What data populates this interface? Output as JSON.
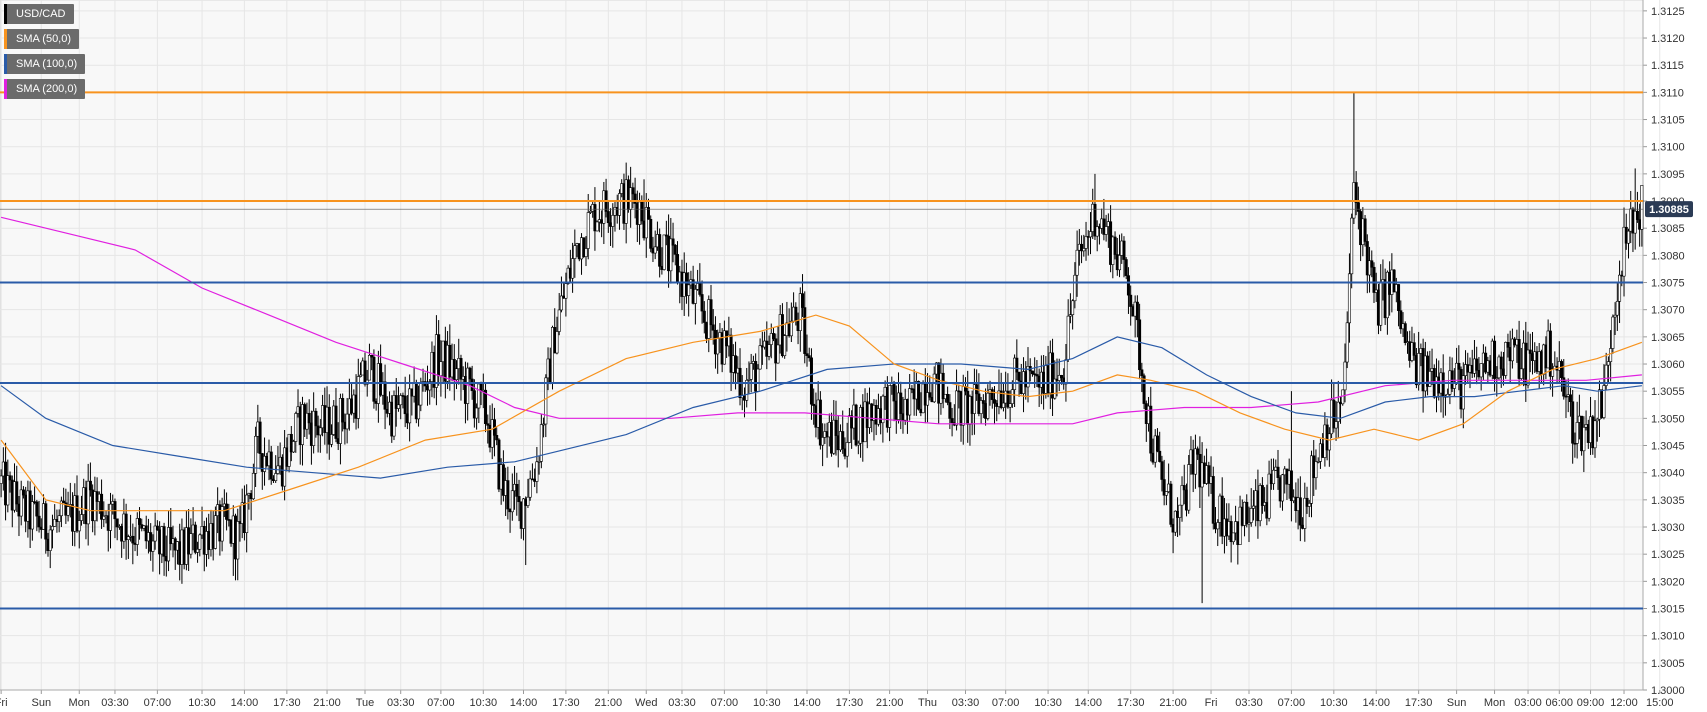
{
  "chart_data": {
    "type": "candlestick",
    "symbol": "USD/CAD",
    "legend": [
      {
        "label": "USD/CAD",
        "color": "#000000"
      },
      {
        "label": "SMA (50,0)",
        "color": "#f7931e"
      },
      {
        "label": "SMA (100,0)",
        "color": "#2a5ba8"
      },
      {
        "label": "SMA (200,0)",
        "color": "#e020e0"
      }
    ],
    "ylim": [
      1.3,
      1.3127
    ],
    "y_ticks": [
      "1.3000",
      "1.3005",
      "1.3010",
      "1.3015",
      "1.3020",
      "1.3025",
      "1.3030",
      "1.3035",
      "1.3040",
      "1.3045",
      "1.3050",
      "1.3055",
      "1.3060",
      "1.3065",
      "1.3070",
      "1.3075",
      "1.3080",
      "1.3085",
      "1.3090",
      "1.3095",
      "1.3100",
      "1.3105",
      "1.3110",
      "1.3115",
      "1.3120",
      "1.3125"
    ],
    "x_ticks": [
      "Fri",
      "Sun",
      "Mon",
      "03:30",
      "07:00",
      "10:30",
      "14:00",
      "17:30",
      "21:00",
      "Tue",
      "03:30",
      "07:00",
      "10:30",
      "14:00",
      "17:30",
      "21:00",
      "Wed",
      "03:30",
      "07:00",
      "10:30",
      "14:00",
      "17:30",
      "21:00",
      "Thu",
      "03:30",
      "07:00",
      "10:30",
      "14:00",
      "17:30",
      "21:00",
      "Fri",
      "03:30",
      "07:00",
      "10:30",
      "14:00",
      "17:30",
      "Sun",
      "Mon",
      "03:00",
      "06:00",
      "09:00",
      "12:00",
      "15:00"
    ],
    "x_tick_index": [
      0,
      18,
      35,
      51,
      70,
      90,
      109,
      128,
      146,
      163,
      179,
      197,
      216,
      234,
      253,
      272,
      289,
      305,
      324,
      343,
      361,
      380,
      398,
      415,
      432,
      450,
      469,
      487,
      506,
      525,
      542,
      559,
      578,
      597,
      616,
      635,
      652,
      669,
      684,
      698,
      712,
      727,
      743
    ],
    "current_price": "1.30885",
    "current_value": 1.30885,
    "horizontal_levels": [
      {
        "value": 1.311,
        "color": "#f7931e"
      },
      {
        "value": 1.309,
        "color": "#f7931e"
      },
      {
        "value": 1.3075,
        "color": "#2a5ba8"
      },
      {
        "value": 1.30565,
        "color": "#2a5ba8"
      },
      {
        "value": 1.3015,
        "color": "#2a5ba8"
      }
    ],
    "anchors": [
      [
        0,
        1.3038
      ],
      [
        10,
        1.3033
      ],
      [
        20,
        1.303
      ],
      [
        30,
        1.3031
      ],
      [
        40,
        1.3036
      ],
      [
        50,
        1.3032
      ],
      [
        60,
        1.3029
      ],
      [
        70,
        1.3026
      ],
      [
        80,
        1.3025
      ],
      [
        90,
        1.3029
      ],
      [
        100,
        1.303
      ],
      [
        107,
        1.3028
      ],
      [
        115,
        1.3045
      ],
      [
        125,
        1.3041
      ],
      [
        135,
        1.305
      ],
      [
        145,
        1.3048
      ],
      [
        155,
        1.3051
      ],
      [
        165,
        1.3059
      ],
      [
        175,
        1.3051
      ],
      [
        185,
        1.3052
      ],
      [
        195,
        1.3061
      ],
      [
        200,
        1.306
      ],
      [
        210,
        1.3055
      ],
      [
        218,
        1.305
      ],
      [
        225,
        1.3037
      ],
      [
        232,
        1.3033
      ],
      [
        240,
        1.3042
      ],
      [
        248,
        1.3066
      ],
      [
        258,
        1.3082
      ],
      [
        266,
        1.3088
      ],
      [
        276,
        1.309
      ],
      [
        285,
        1.309
      ],
      [
        293,
        1.3083
      ],
      [
        303,
        1.3077
      ],
      [
        313,
        1.307
      ],
      [
        323,
        1.3064
      ],
      [
        333,
        1.3056
      ],
      [
        343,
        1.3061
      ],
      [
        350,
        1.3066
      ],
      [
        358,
        1.3069
      ],
      [
        363,
        1.3056
      ],
      [
        368,
        1.3047
      ],
      [
        376,
        1.3046
      ],
      [
        386,
        1.305
      ],
      [
        396,
        1.3053
      ],
      [
        406,
        1.3051
      ],
      [
        416,
        1.3058
      ],
      [
        426,
        1.3052
      ],
      [
        436,
        1.3052
      ],
      [
        446,
        1.3055
      ],
      [
        456,
        1.3057
      ],
      [
        466,
        1.3056
      ],
      [
        476,
        1.306
      ],
      [
        482,
        1.3078
      ],
      [
        490,
        1.3088
      ],
      [
        498,
        1.3082
      ],
      [
        505,
        1.3076
      ],
      [
        510,
        1.3062
      ],
      [
        515,
        1.3047
      ],
      [
        520,
        1.3038
      ],
      [
        527,
        1.303
      ],
      [
        535,
        1.3043
      ],
      [
        543,
        1.3034
      ],
      [
        553,
        1.303
      ],
      [
        563,
        1.3033
      ],
      [
        573,
        1.3038
      ],
      [
        583,
        1.3034
      ],
      [
        593,
        1.3048
      ],
      [
        601,
        1.3052
      ],
      [
        606,
        1.3092
      ],
      [
        611,
        1.3082
      ],
      [
        616,
        1.307
      ],
      [
        623,
        1.3075
      ],
      [
        630,
        1.3062
      ],
      [
        637,
        1.3058
      ],
      [
        645,
        1.3058
      ],
      [
        655,
        1.3056
      ],
      [
        665,
        1.306
      ],
      [
        675,
        1.3062
      ],
      [
        685,
        1.306
      ],
      [
        695,
        1.3062
      ],
      [
        700,
        1.3055
      ],
      [
        705,
        1.3048
      ],
      [
        712,
        1.3048
      ],
      [
        718,
        1.3054
      ],
      [
        722,
        1.307
      ],
      [
        726,
        1.308
      ],
      [
        734,
        1.3089
      ]
    ],
    "wick_peaks": [
      [
        288,
        1.3094
      ],
      [
        490,
        1.3095
      ],
      [
        606,
        1.311
      ],
      [
        732,
        1.3096
      ],
      [
        538,
        1.3016
      ],
      [
        235,
        1.3023
      ],
      [
        104,
        1.3021
      ],
      [
        578,
        1.3055
      ]
    ],
    "sma50": [
      [
        0,
        1.3046
      ],
      [
        20,
        1.3035
      ],
      [
        40,
        1.3033
      ],
      [
        70,
        1.3033
      ],
      [
        100,
        1.3033
      ],
      [
        130,
        1.3037
      ],
      [
        160,
        1.3041
      ],
      [
        190,
        1.3046
      ],
      [
        220,
        1.3048
      ],
      [
        250,
        1.3055
      ],
      [
        280,
        1.3061
      ],
      [
        310,
        1.3064
      ],
      [
        340,
        1.3066
      ],
      [
        365,
        1.3069
      ],
      [
        380,
        1.3067
      ],
      [
        400,
        1.306
      ],
      [
        420,
        1.3057
      ],
      [
        440,
        1.3055
      ],
      [
        460,
        1.3054
      ],
      [
        480,
        1.3055
      ],
      [
        500,
        1.3058
      ],
      [
        515,
        1.3057
      ],
      [
        535,
        1.3055
      ],
      [
        555,
        1.3051
      ],
      [
        575,
        1.3048
      ],
      [
        595,
        1.3046
      ],
      [
        615,
        1.3048
      ],
      [
        635,
        1.3046
      ],
      [
        655,
        1.3049
      ],
      [
        675,
        1.3055
      ],
      [
        695,
        1.3059
      ],
      [
        715,
        1.3061
      ],
      [
        735,
        1.3064
      ]
    ],
    "sma100": [
      [
        0,
        1.3056
      ],
      [
        20,
        1.305
      ],
      [
        50,
        1.3045
      ],
      [
        80,
        1.3043
      ],
      [
        110,
        1.3041
      ],
      [
        140,
        1.304
      ],
      [
        170,
        1.3039
      ],
      [
        200,
        1.3041
      ],
      [
        230,
        1.3042
      ],
      [
        250,
        1.3044
      ],
      [
        280,
        1.3047
      ],
      [
        310,
        1.3052
      ],
      [
        340,
        1.3055
      ],
      [
        370,
        1.3059
      ],
      [
        400,
        1.306
      ],
      [
        430,
        1.306
      ],
      [
        460,
        1.3059
      ],
      [
        480,
        1.3061
      ],
      [
        500,
        1.3065
      ],
      [
        520,
        1.3063
      ],
      [
        540,
        1.3058
      ],
      [
        560,
        1.3054
      ],
      [
        580,
        1.3051
      ],
      [
        600,
        1.305
      ],
      [
        620,
        1.3053
      ],
      [
        640,
        1.3054
      ],
      [
        660,
        1.3054
      ],
      [
        680,
        1.3055
      ],
      [
        700,
        1.3056
      ],
      [
        715,
        1.3055
      ],
      [
        735,
        1.3056
      ]
    ],
    "sma200": [
      [
        0,
        1.3087
      ],
      [
        30,
        1.3084
      ],
      [
        60,
        1.3081
      ],
      [
        90,
        1.3074
      ],
      [
        120,
        1.3069
      ],
      [
        150,
        1.3064
      ],
      [
        180,
        1.306
      ],
      [
        210,
        1.3056
      ],
      [
        230,
        1.3052
      ],
      [
        250,
        1.305
      ],
      [
        270,
        1.305
      ],
      [
        300,
        1.305
      ],
      [
        330,
        1.3051
      ],
      [
        360,
        1.3051
      ],
      [
        390,
        1.305
      ],
      [
        420,
        1.3049
      ],
      [
        450,
        1.3049
      ],
      [
        480,
        1.3049
      ],
      [
        500,
        1.3051
      ],
      [
        530,
        1.3052
      ],
      [
        560,
        1.3052
      ],
      [
        590,
        1.3053
      ],
      [
        620,
        1.3056
      ],
      [
        650,
        1.3057
      ],
      [
        680,
        1.3057
      ],
      [
        710,
        1.3057
      ],
      [
        735,
        1.3058
      ]
    ],
    "n_candles": 736
  }
}
